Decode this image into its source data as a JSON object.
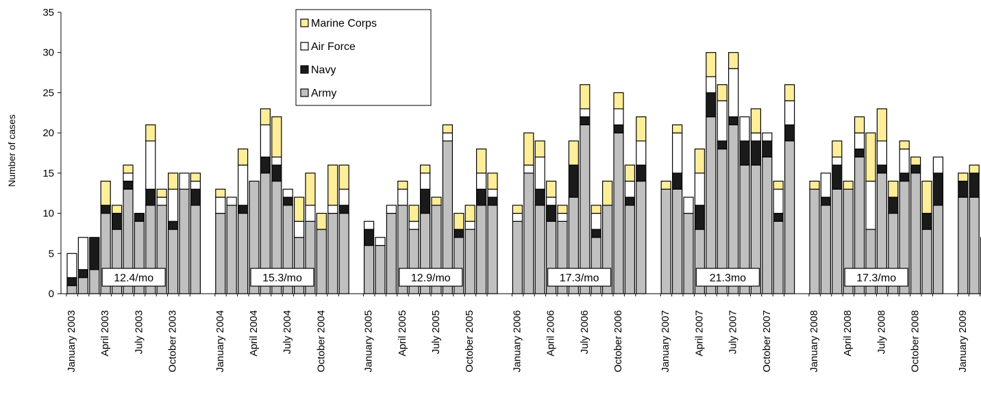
{
  "chart_data": {
    "type": "bar",
    "stacked": true,
    "ylabel": "Number of cases",
    "ylim": [
      0,
      35
    ],
    "yticks": [
      0,
      5,
      10,
      15,
      20,
      25,
      30,
      35
    ],
    "grid": false,
    "legend": {
      "position": "top-center",
      "entries": [
        {
          "name": "Marine Corps",
          "color": "#FFEE99"
        },
        {
          "name": "Air Force",
          "color": "#FFFFFF"
        },
        {
          "name": "Navy",
          "color": "#1A1A1A"
        },
        {
          "name": "Army",
          "color": "#C0C0C0"
        }
      ]
    },
    "stack_order": [
      "Army",
      "Navy",
      "Air Force",
      "Marine Corps"
    ],
    "years": [
      {
        "year": 2003,
        "annotation": "12.4/mo",
        "tick_labels": [
          "January 2003",
          "April 2003",
          "July 2003",
          "October 2003"
        ],
        "months": [
          [
            1,
            1,
            3,
            0
          ],
          [
            2,
            1,
            4,
            0
          ],
          [
            3,
            4,
            0,
            0
          ],
          [
            10,
            1,
            0,
            3
          ],
          [
            8,
            2,
            0,
            1
          ],
          [
            13,
            1,
            1,
            1
          ],
          [
            9,
            1,
            0,
            0
          ],
          [
            11,
            2,
            6,
            2
          ],
          [
            11,
            0,
            1,
            1
          ],
          [
            8,
            1,
            4,
            2
          ],
          [
            13,
            0,
            2,
            0
          ],
          [
            11,
            2,
            1,
            1
          ]
        ]
      },
      {
        "year": 2004,
        "annotation": "15.3/mo",
        "tick_labels": [
          "January 2004",
          "April 2004",
          "July 2004",
          "October 2004"
        ],
        "months": [
          [
            10,
            0,
            2,
            1
          ],
          [
            11,
            0,
            1,
            0
          ],
          [
            10,
            1,
            5,
            2
          ],
          [
            14,
            0,
            0,
            0
          ],
          [
            15,
            2,
            4,
            2
          ],
          [
            14,
            2,
            1,
            5
          ],
          [
            11,
            1,
            1,
            0
          ],
          [
            7,
            0,
            2,
            3
          ],
          [
            9,
            0,
            2,
            4
          ],
          [
            8,
            0,
            0,
            2
          ],
          [
            10,
            0,
            1,
            5
          ],
          [
            10,
            1,
            2,
            3
          ]
        ]
      },
      {
        "year": 2005,
        "annotation": "12.9/mo",
        "tick_labels": [
          "January 2005",
          "April 2005",
          "July 2005",
          "October 2005"
        ],
        "months": [
          [
            6,
            2,
            1,
            0
          ],
          [
            6,
            0,
            1,
            0
          ],
          [
            10,
            0,
            1,
            0
          ],
          [
            11,
            0,
            2,
            1
          ],
          [
            8,
            0,
            1,
            2
          ],
          [
            10,
            3,
            2,
            1
          ],
          [
            11,
            0,
            0,
            1
          ],
          [
            19,
            0,
            1,
            1
          ],
          [
            7,
            1,
            0,
            2
          ],
          [
            8,
            0,
            1,
            2
          ],
          [
            11,
            2,
            2,
            3
          ],
          [
            11,
            1,
            1,
            2
          ]
        ]
      },
      {
        "year": 2006,
        "annotation": "17.3/mo",
        "tick_labels": [
          "January 2006",
          "April 2006",
          "July 2006",
          "October 2006"
        ],
        "months": [
          [
            9,
            0,
            1,
            1
          ],
          [
            15,
            0,
            1,
            4
          ],
          [
            11,
            2,
            4,
            2
          ],
          [
            9,
            2,
            1,
            2
          ],
          [
            9,
            0,
            1,
            1
          ],
          [
            12,
            4,
            0,
            3
          ],
          [
            21,
            1,
            1,
            3
          ],
          [
            7,
            1,
            2,
            1
          ],
          [
            11,
            0,
            0,
            3
          ],
          [
            20,
            1,
            2,
            2
          ],
          [
            11,
            1,
            2,
            2
          ],
          [
            14,
            2,
            3,
            3
          ]
        ]
      },
      {
        "year": 2007,
        "annotation": "21.3mo",
        "tick_labels": [
          "January 2007",
          "April 2007",
          "July 2007",
          "October 2007"
        ],
        "months": [
          [
            13,
            0,
            0,
            1
          ],
          [
            13,
            2,
            5,
            1
          ],
          [
            10,
            0,
            2,
            0
          ],
          [
            8,
            3,
            4,
            3
          ],
          [
            22,
            3,
            2,
            3
          ],
          [
            18,
            1,
            5,
            2
          ],
          [
            21,
            1,
            6,
            2
          ],
          [
            16,
            3,
            3,
            0
          ],
          [
            16,
            3,
            1,
            3
          ],
          [
            17,
            2,
            1,
            0
          ],
          [
            9,
            1,
            3,
            1
          ],
          [
            19,
            2,
            3,
            2
          ]
        ]
      },
      {
        "year": 2008,
        "annotation": "17.3/mo",
        "tick_labels": [
          "January 2008",
          "April 2008",
          "July 2008",
          "October 2008"
        ],
        "months": [
          [
            13,
            0,
            0,
            1
          ],
          [
            11,
            1,
            3,
            0
          ],
          [
            13,
            3,
            1,
            2
          ],
          [
            13,
            0,
            0,
            1
          ],
          [
            17,
            1,
            2,
            2
          ],
          [
            8,
            0,
            6,
            6
          ],
          [
            15,
            1,
            3,
            4
          ],
          [
            10,
            2,
            0,
            2
          ],
          [
            14,
            1,
            3,
            1
          ],
          [
            15,
            1,
            0,
            1
          ],
          [
            8,
            2,
            0,
            4
          ],
          [
            11,
            4,
            2,
            0
          ]
        ]
      },
      {
        "year": 2009,
        "annotation": "",
        "tick_labels": [
          "January 2009"
        ],
        "months": [
          [
            12,
            2,
            0,
            1
          ],
          [
            12,
            3,
            0,
            1
          ],
          [
            6,
            0,
            1,
            0
          ]
        ]
      }
    ]
  }
}
